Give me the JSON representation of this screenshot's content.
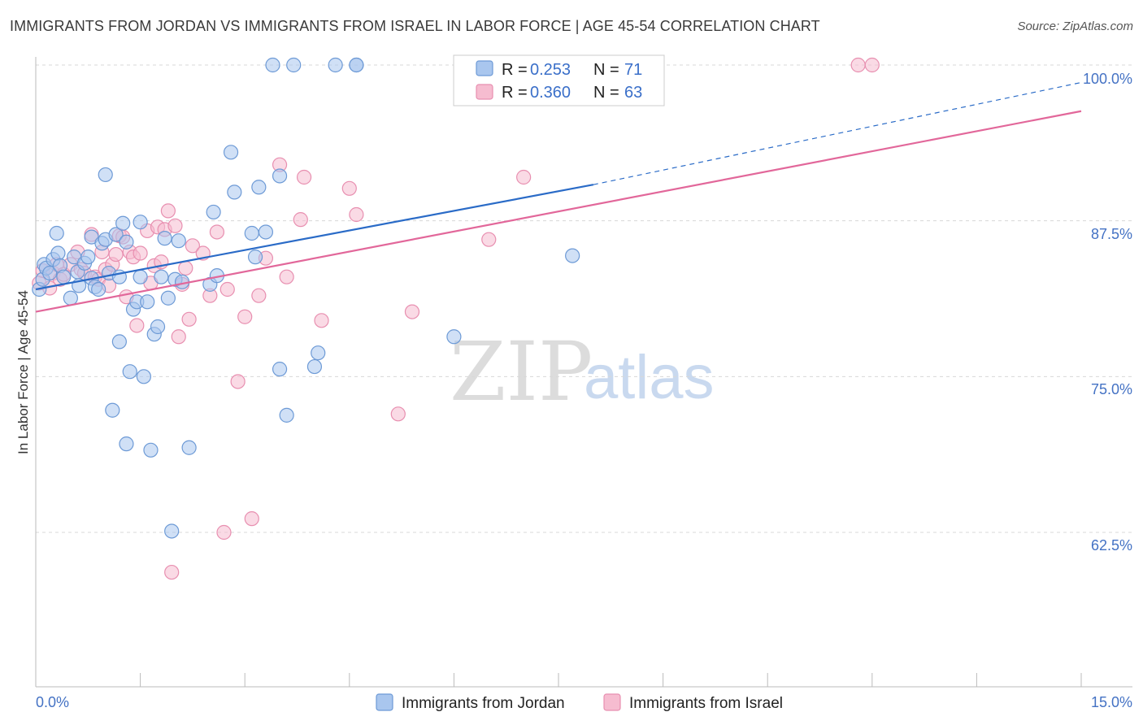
{
  "header": {
    "title": "IMMIGRANTS FROM JORDAN VS IMMIGRANTS FROM ISRAEL IN LABOR FORCE | AGE 45-54 CORRELATION CHART",
    "source": "Source: ZipAtlas.com"
  },
  "watermark": {
    "zip": "ZIP",
    "atlas": "atlas"
  },
  "legend": {
    "r_label": "R =",
    "n_label": "N =",
    "rows": [
      {
        "r": "0.253",
        "n": "71"
      },
      {
        "r": "0.360",
        "n": "63"
      }
    ]
  },
  "colors": {
    "jordan_fill": "#a9c6ee",
    "jordan_stroke": "#6d9ad6",
    "jordan_line": "#2a6bc7",
    "israel_fill": "#f6bcd0",
    "israel_stroke": "#e88fb0",
    "israel_line": "#e2679a",
    "grid": "#d8d8d8",
    "axis_text": "#4472c4"
  },
  "chart_data": {
    "type": "scatter",
    "title": "IMMIGRANTS FROM JORDAN VS IMMIGRANTS FROM ISRAEL IN LABOR FORCE | AGE 45-54 CORRELATION CHART",
    "xlabel": "",
    "ylabel": "In Labor Force | Age 45-54",
    "xlim": [
      0,
      15
    ],
    "ylim": [
      50.0,
      100.0
    ],
    "x_tick_labels": [
      "0.0%",
      "15.0%"
    ],
    "y_ticks": [
      62.5,
      75.0,
      87.5,
      100.0
    ],
    "y_tick_labels": [
      "62.5%",
      "75.0%",
      "87.5%",
      "100.0%"
    ],
    "grid": "horizontal dashed",
    "legend_position": "top-center and bottom",
    "series": [
      {
        "name": "Immigrants from Jordan",
        "r": 0.253,
        "n": 71,
        "trend": {
          "x0": 0.0,
          "y0": 82.0,
          "x1": 8.0,
          "y1": 90.4,
          "dashed_to_x": 15.0,
          "dashed_to_y": 98.6
        },
        "points": [
          [
            0.05,
            82.0
          ],
          [
            0.1,
            82.8
          ],
          [
            0.12,
            84.0
          ],
          [
            0.15,
            83.7
          ],
          [
            0.2,
            83.3
          ],
          [
            0.25,
            84.4
          ],
          [
            0.3,
            86.5
          ],
          [
            0.32,
            84.9
          ],
          [
            0.35,
            83.9
          ],
          [
            0.4,
            83.0
          ],
          [
            0.5,
            81.3
          ],
          [
            0.55,
            84.6
          ],
          [
            0.6,
            83.4
          ],
          [
            0.62,
            82.3
          ],
          [
            0.7,
            84.1
          ],
          [
            0.75,
            84.6
          ],
          [
            0.8,
            86.2
          ],
          [
            0.8,
            82.9
          ],
          [
            0.85,
            82.2
          ],
          [
            0.9,
            82.0
          ],
          [
            0.95,
            85.7
          ],
          [
            1.0,
            86.0
          ],
          [
            1.0,
            91.2
          ],
          [
            1.05,
            83.3
          ],
          [
            1.1,
            72.3
          ],
          [
            1.15,
            86.4
          ],
          [
            1.2,
            83.0
          ],
          [
            1.2,
            77.8
          ],
          [
            1.25,
            87.3
          ],
          [
            1.3,
            85.8
          ],
          [
            1.3,
            69.6
          ],
          [
            1.35,
            75.4
          ],
          [
            1.4,
            80.4
          ],
          [
            1.45,
            81.0
          ],
          [
            1.5,
            87.4
          ],
          [
            1.5,
            83.0
          ],
          [
            1.55,
            75.0
          ],
          [
            1.6,
            81.0
          ],
          [
            1.65,
            69.1
          ],
          [
            1.7,
            78.4
          ],
          [
            1.75,
            79.0
          ],
          [
            1.8,
            83.0
          ],
          [
            1.85,
            86.1
          ],
          [
            1.9,
            81.3
          ],
          [
            1.95,
            62.6
          ],
          [
            2.0,
            82.8
          ],
          [
            2.05,
            85.9
          ],
          [
            2.1,
            82.6
          ],
          [
            2.2,
            69.3
          ],
          [
            2.5,
            82.4
          ],
          [
            2.55,
            88.2
          ],
          [
            2.6,
            83.1
          ],
          [
            2.8,
            93.0
          ],
          [
            2.85,
            89.8
          ],
          [
            3.1,
            86.5
          ],
          [
            3.15,
            84.6
          ],
          [
            3.2,
            90.2
          ],
          [
            3.3,
            86.6
          ],
          [
            3.4,
            100.0
          ],
          [
            3.5,
            91.1
          ],
          [
            3.5,
            75.6
          ],
          [
            3.6,
            71.9
          ],
          [
            3.7,
            100.0
          ],
          [
            4.0,
            75.8
          ],
          [
            4.05,
            76.9
          ],
          [
            4.3,
            100.0
          ],
          [
            4.6,
            100.0
          ],
          [
            4.6,
            100.0
          ],
          [
            6.0,
            78.2
          ],
          [
            6.5,
            100.0
          ],
          [
            7.7,
            84.7
          ]
        ]
      },
      {
        "name": "Immigrants from Israel",
        "r": 0.36,
        "n": 63,
        "trend": {
          "x0": 0.0,
          "y0": 80.2,
          "x1": 15.0,
          "y1": 96.3
        },
        "points": [
          [
            0.05,
            82.5
          ],
          [
            0.1,
            83.5
          ],
          [
            0.2,
            82.1
          ],
          [
            0.25,
            83.3
          ],
          [
            0.3,
            84.0
          ],
          [
            0.35,
            82.8
          ],
          [
            0.4,
            83.2
          ],
          [
            0.5,
            84.0
          ],
          [
            0.6,
            85.0
          ],
          [
            0.65,
            83.6
          ],
          [
            0.7,
            83.3
          ],
          [
            0.8,
            86.4
          ],
          [
            0.85,
            83.0
          ],
          [
            0.9,
            82.8
          ],
          [
            0.95,
            85.0
          ],
          [
            1.0,
            83.6
          ],
          [
            1.05,
            82.3
          ],
          [
            1.1,
            84.0
          ],
          [
            1.15,
            84.8
          ],
          [
            1.2,
            86.3
          ],
          [
            1.25,
            86.2
          ],
          [
            1.3,
            81.4
          ],
          [
            1.35,
            85.0
          ],
          [
            1.4,
            84.6
          ],
          [
            1.45,
            79.1
          ],
          [
            1.5,
            84.9
          ],
          [
            1.6,
            86.7
          ],
          [
            1.65,
            82.5
          ],
          [
            1.7,
            83.9
          ],
          [
            1.75,
            87.0
          ],
          [
            1.8,
            84.2
          ],
          [
            1.85,
            86.8
          ],
          [
            1.9,
            88.3
          ],
          [
            1.95,
            59.3
          ],
          [
            2.0,
            87.1
          ],
          [
            2.05,
            78.2
          ],
          [
            2.1,
            82.4
          ],
          [
            2.15,
            83.7
          ],
          [
            2.2,
            79.6
          ],
          [
            2.25,
            85.5
          ],
          [
            2.4,
            84.9
          ],
          [
            2.5,
            81.5
          ],
          [
            2.6,
            86.6
          ],
          [
            2.7,
            62.5
          ],
          [
            2.75,
            82.0
          ],
          [
            2.9,
            74.6
          ],
          [
            3.0,
            79.8
          ],
          [
            3.1,
            63.6
          ],
          [
            3.2,
            81.5
          ],
          [
            3.3,
            84.5
          ],
          [
            3.5,
            92.0
          ],
          [
            3.6,
            83.0
          ],
          [
            3.8,
            87.6
          ],
          [
            3.85,
            91.0
          ],
          [
            4.1,
            79.5
          ],
          [
            4.5,
            90.1
          ],
          [
            4.6,
            88.0
          ],
          [
            5.2,
            72.0
          ],
          [
            5.4,
            80.2
          ],
          [
            6.5,
            86.0
          ],
          [
            7.0,
            91.0
          ],
          [
            11.8,
            100.0
          ],
          [
            12.0,
            100.0
          ]
        ]
      }
    ]
  },
  "axes": {
    "ylabel": "In Labor Force | Age 45-54",
    "x_min_label": "0.0%",
    "x_max_label": "15.0%",
    "y_labels": [
      "62.5%",
      "75.0%",
      "87.5%",
      "100.0%"
    ]
  },
  "bottom_legend": {
    "items": [
      {
        "label": "Immigrants from Jordan"
      },
      {
        "label": "Immigrants from Israel"
      }
    ]
  }
}
